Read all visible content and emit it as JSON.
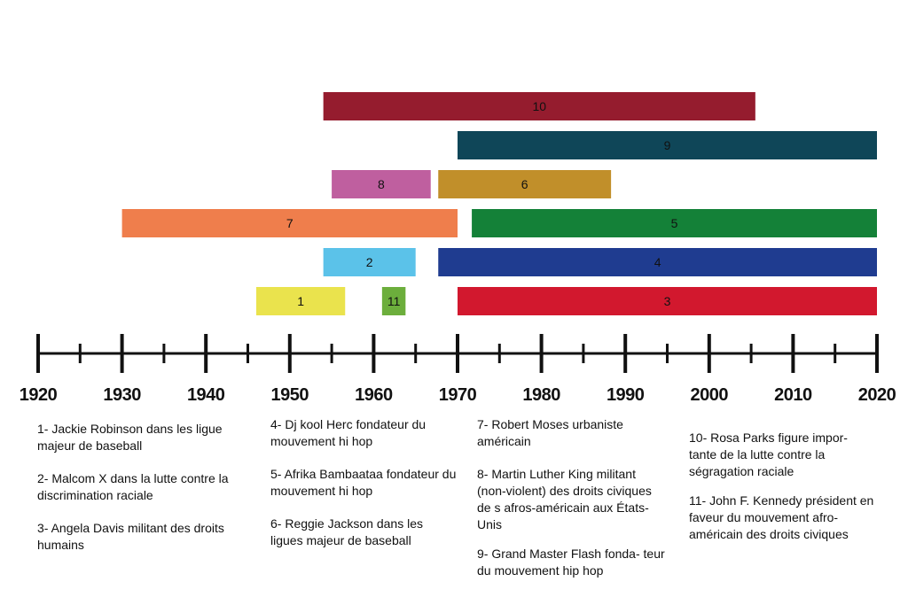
{
  "chart_data": {
    "type": "timeline",
    "xlim": [
      1920,
      2020
    ],
    "ticks": [
      "1920",
      "1930",
      "1940",
      "1950",
      "1960",
      "1970",
      "1980",
      "1990",
      "2000",
      "2010",
      "2020"
    ],
    "bars": [
      {
        "label": "10",
        "start": 1954,
        "end": 2005.5,
        "row": 6,
        "color": "#951c2e"
      },
      {
        "label": "9",
        "start": 1970,
        "end": 2020,
        "row": 5,
        "color": "#0f4658"
      },
      {
        "label": "8",
        "start": 1955,
        "end": 1966.8,
        "row": 4,
        "color": "#bf5f9f"
      },
      {
        "label": "6",
        "start": 1967.7,
        "end": 1988.3,
        "row": 4,
        "color": "#c18f2a"
      },
      {
        "label": "7",
        "start": 1930,
        "end": 1970,
        "row": 3,
        "color": "#ef7e4c"
      },
      {
        "label": "5",
        "start": 1971.7,
        "end": 2020,
        "row": 3,
        "color": "#148138"
      },
      {
        "label": "2",
        "start": 1954,
        "end": 1965,
        "row": 2,
        "color": "#5bc2e9"
      },
      {
        "label": "4",
        "start": 1967.7,
        "end": 2020,
        "row": 2,
        "color": "#1f3c90"
      },
      {
        "label": "1",
        "start": 1946,
        "end": 1956.6,
        "row": 1,
        "color": "#eae34d"
      },
      {
        "label": "11",
        "start": 1961,
        "end": 1963.8,
        "row": 1,
        "color": "#6cae3c"
      },
      {
        "label": "3",
        "start": 1970,
        "end": 2020,
        "row": 1,
        "color": "#d2182e"
      }
    ]
  },
  "legend": {
    "col1": [
      "1- Jackie Robinson dans les ligue majeur de baseball",
      "2- Malcom X dans la lutte contre la discrimination raciale",
      "3- Angela Davis militant des droits humains"
    ],
    "col2": [
      "4- Dj kool Herc fondateur du mouvement hi hop",
      "5- Afrika Bambaataa fondateur du mouvement hi hop",
      "6- Reggie Jackson dans les ligues majeur de baseball"
    ],
    "col3": [
      "7- Robert Moses urbaniste américain",
      "8- Martin Luther King militant (non-violent) des droits civiques de s afros-américain aux États-Unis",
      "9- Grand Master Flash fonda- teur du mouvement hip hop"
    ],
    "col4": [
      "10- Rosa Parks figure impor- tante de la lutte contre la ségragation raciale",
      "11- John F. Kennedy président en faveur du mouvement afro-américain des droits civiques"
    ]
  }
}
